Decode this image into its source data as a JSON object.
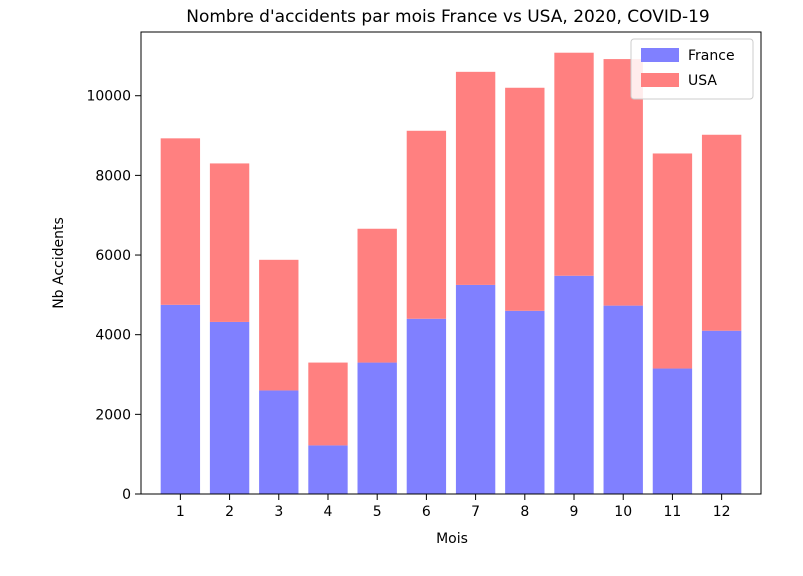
{
  "chart_data": {
    "type": "bar",
    "stacked": true,
    "title": "Nombre d'accidents par mois France vs USA, 2020, COVID-19",
    "xlabel": "Mois",
    "ylabel": "Nb Accidents",
    "categories": [
      "1",
      "2",
      "3",
      "4",
      "5",
      "6",
      "7",
      "8",
      "9",
      "10",
      "11",
      "12"
    ],
    "yticks": [
      "0",
      "2000",
      "4000",
      "6000",
      "8000",
      "10000"
    ],
    "ylim": [
      0,
      11600
    ],
    "grid": false,
    "legend_position": "top-right",
    "series": [
      {
        "name": "France",
        "color": "#8080ff",
        "values": [
          4750,
          4320,
          2600,
          1220,
          3300,
          4400,
          5250,
          4600,
          5480,
          4730,
          3150,
          4100
        ]
      },
      {
        "name": "USA",
        "color": "#ff8080",
        "values": [
          4180,
          3980,
          3280,
          2080,
          3360,
          4720,
          5350,
          5600,
          5600,
          6190,
          5400,
          4920
        ]
      }
    ]
  }
}
